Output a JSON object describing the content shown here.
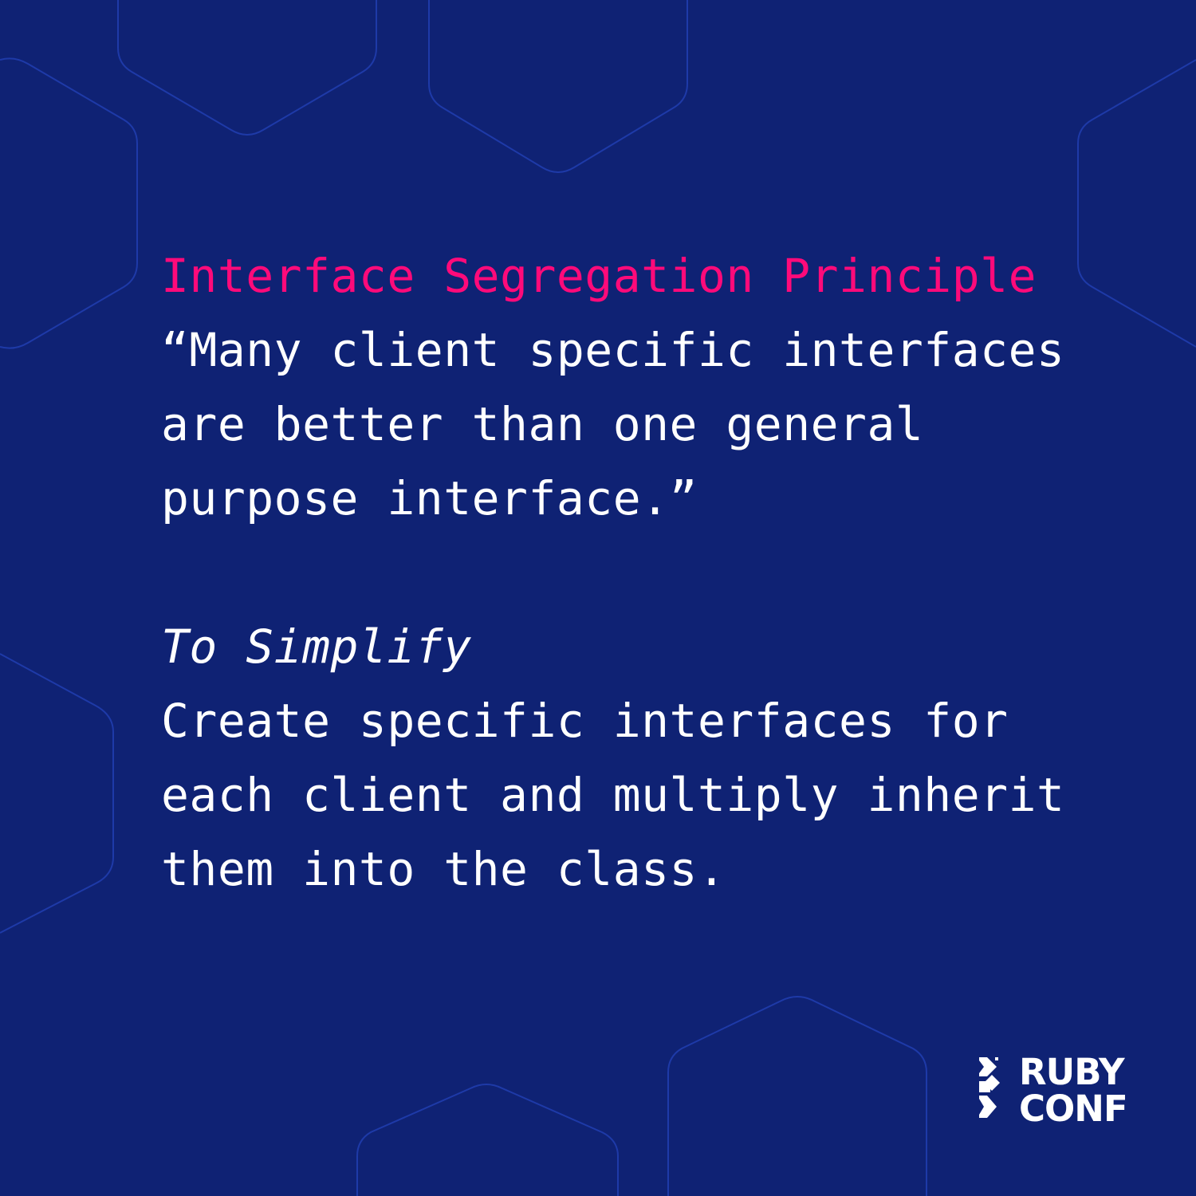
{
  "colors": {
    "background": "#0f2274",
    "hexagon_outline": "#1e3aa8",
    "title": "#ff0a7a",
    "text": "#ffffff"
  },
  "card": {
    "title": "Interface Segregation Principle",
    "quote_lines": [
      "“Many client specific interfaces",
      "are better than one general",
      "purpose interface.”"
    ],
    "subheading": "To Simplify",
    "summary_lines": [
      "Create specific interfaces for",
      "each client and multiply inherit",
      "them into the class."
    ]
  },
  "logo": {
    "line1": "RUBY",
    "line2": "CONF"
  }
}
